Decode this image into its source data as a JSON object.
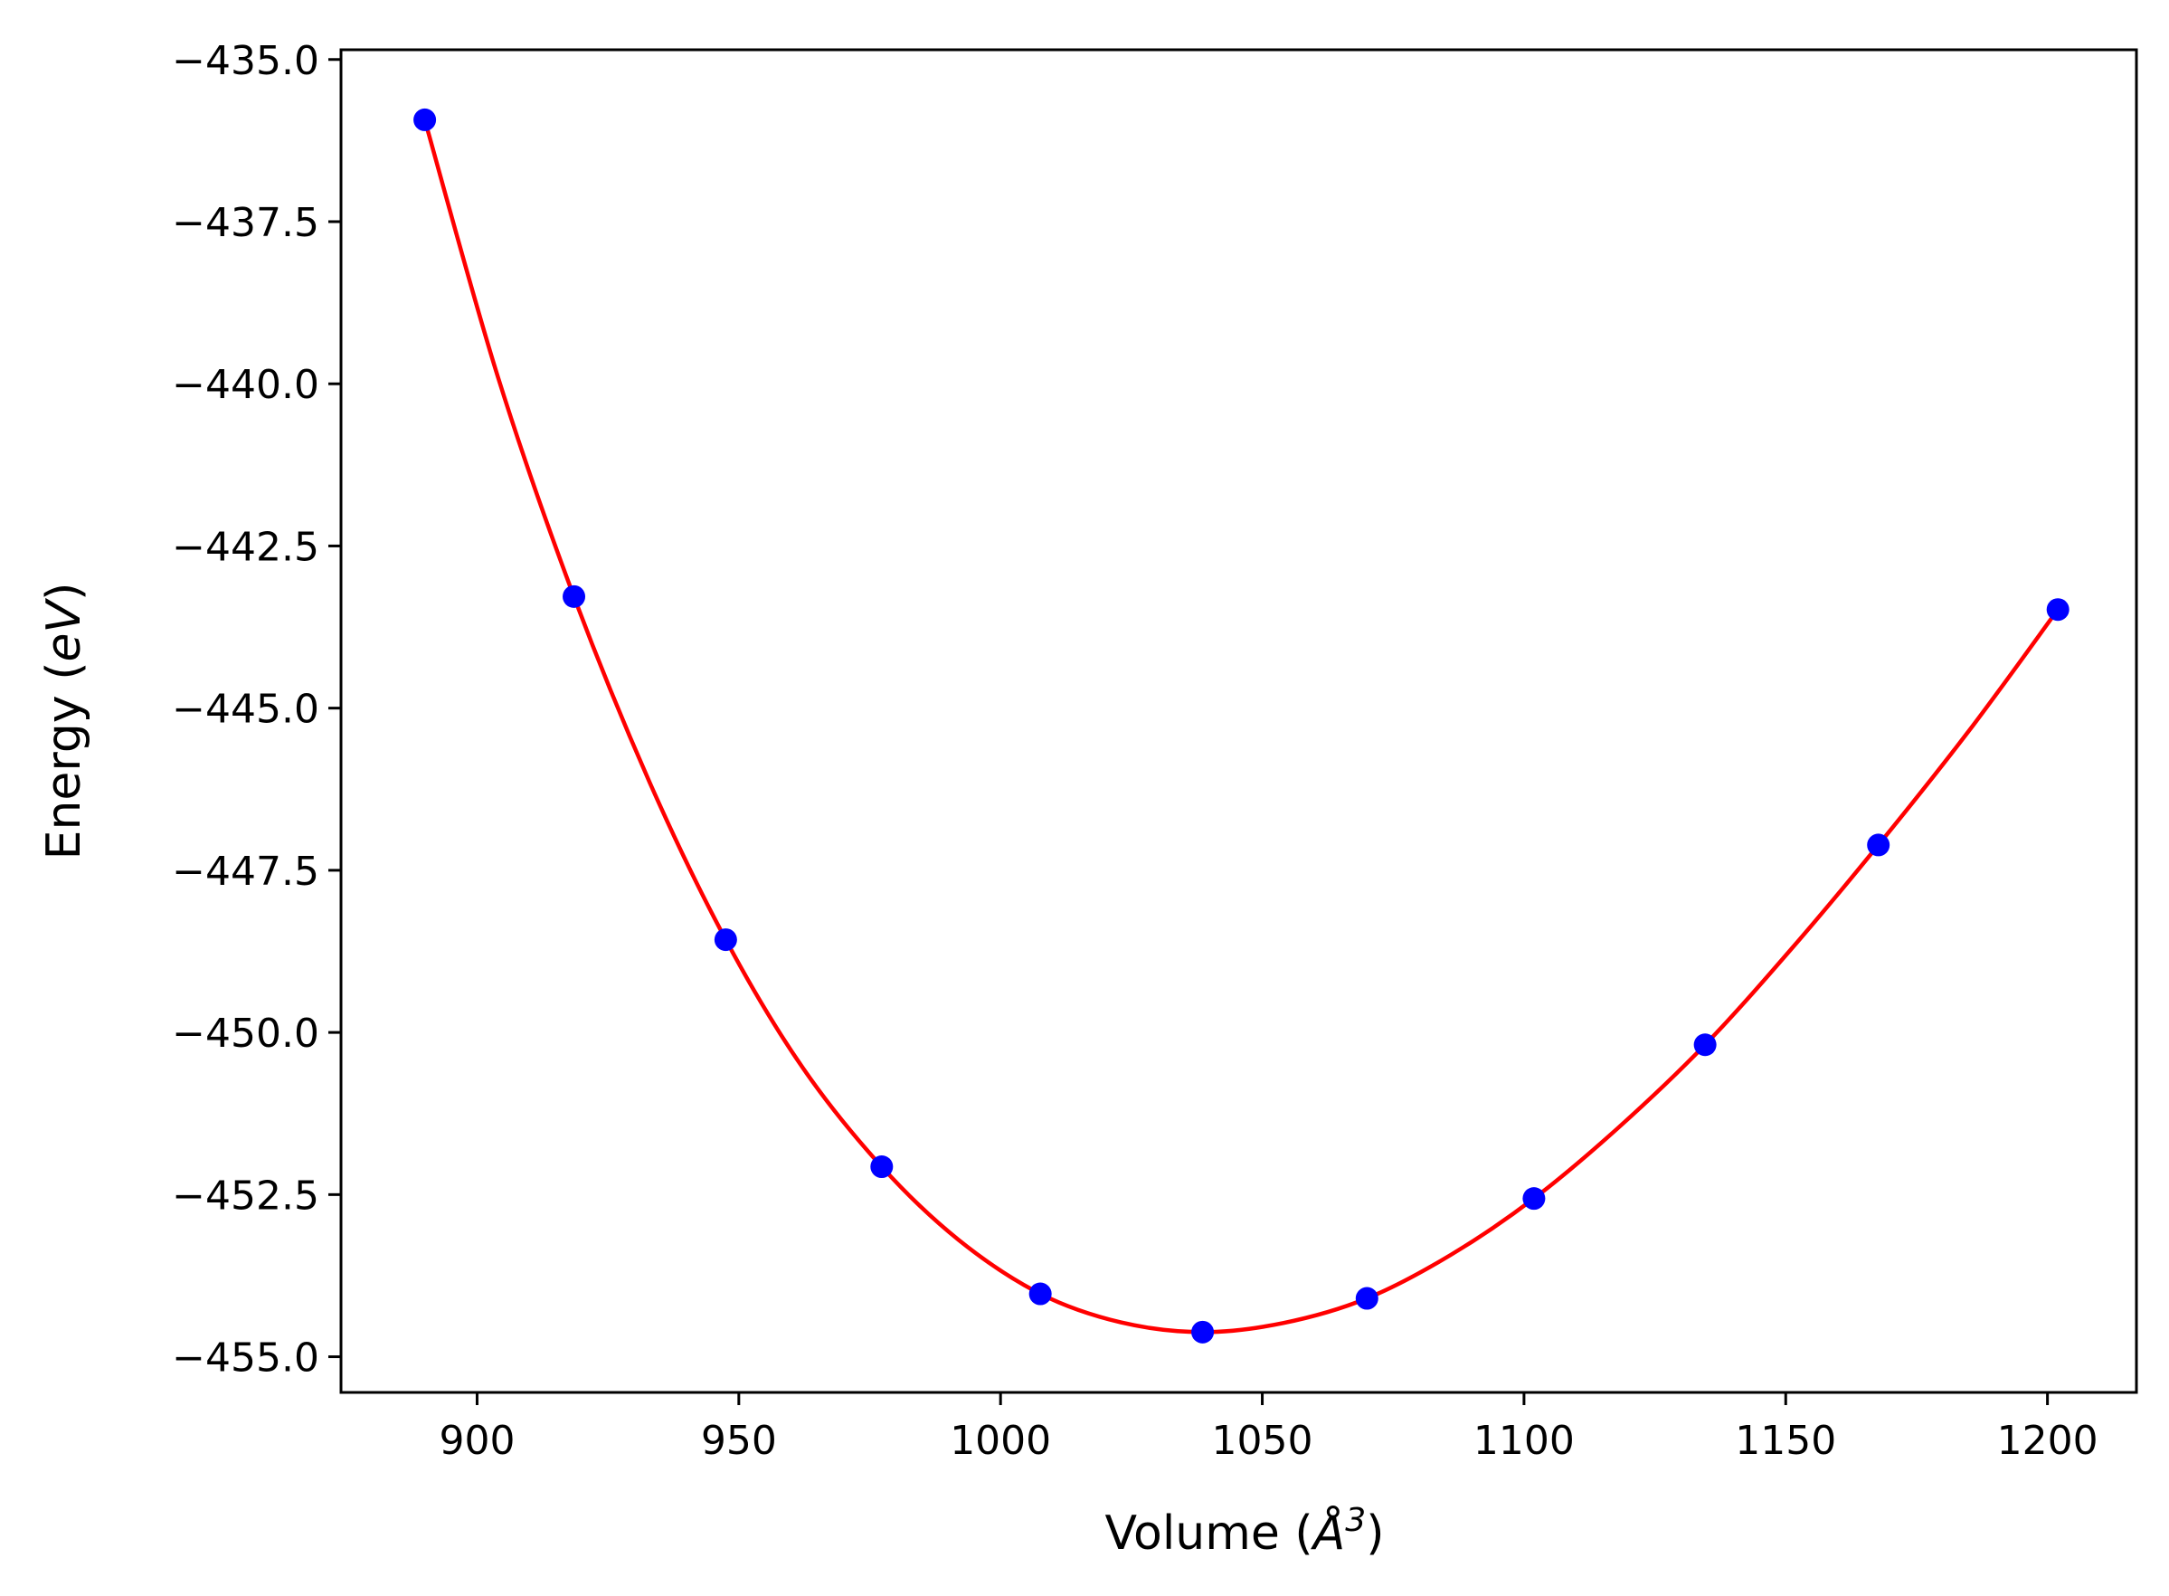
{
  "chart_data": {
    "type": "scatter",
    "xlabel": "Volume (Å³)",
    "ylabel": "Energy (eV)",
    "xlabel_parts": {
      "prefix": "Volume (",
      "symbol": "Å",
      "exponent": "3",
      "suffix": ")"
    },
    "ylabel_parts": {
      "prefix": "Energy (",
      "unit": "eV",
      "suffix": ")"
    },
    "xlim": [
      874,
      1217
    ],
    "ylim": [
      -455.55,
      -434.85
    ],
    "x_ticks": [
      900,
      950,
      1000,
      1050,
      1100,
      1150,
      1200
    ],
    "x_tick_labels": [
      "900",
      "950",
      "1000",
      "1050",
      "1100",
      "1150",
      "1200"
    ],
    "y_ticks": [
      -435.0,
      -437.5,
      -440.0,
      -442.5,
      -445.0,
      -447.5,
      -450.0,
      -452.5,
      -455.0
    ],
    "y_tick_labels": [
      "−435.0",
      "−437.5",
      "−440.0",
      "−442.5",
      "−445.0",
      "−447.5",
      "−450.0",
      "−452.5",
      "−455.0"
    ],
    "grid": false,
    "series": [
      {
        "kind": "points",
        "color": "#0000ff",
        "points": [
          {
            "x": 890.0,
            "y": -435.93
          },
          {
            "x": 918.5,
            "y": -443.28
          },
          {
            "x": 947.5,
            "y": -448.57
          },
          {
            "x": 977.3,
            "y": -452.07
          },
          {
            "x": 1007.6,
            "y": -454.03
          },
          {
            "x": 1038.6,
            "y": -454.62
          },
          {
            "x": 1070.0,
            "y": -454.1
          },
          {
            "x": 1101.9,
            "y": -452.56
          },
          {
            "x": 1134.6,
            "y": -450.19
          },
          {
            "x": 1167.7,
            "y": -447.11
          },
          {
            "x": 1202.0,
            "y": -443.48
          }
        ]
      },
      {
        "kind": "fit-curve",
        "color": "#ff0000",
        "points": [
          {
            "x": 890.0,
            "y": -435.93
          },
          {
            "x": 904.0,
            "y": -439.9
          },
          {
            "x": 918.5,
            "y": -443.28
          },
          {
            "x": 933.0,
            "y": -446.15
          },
          {
            "x": 947.5,
            "y": -448.57
          },
          {
            "x": 962.0,
            "y": -450.52
          },
          {
            "x": 977.3,
            "y": -452.07
          },
          {
            "x": 992.0,
            "y": -453.2
          },
          {
            "x": 1007.6,
            "y": -454.03
          },
          {
            "x": 1023.0,
            "y": -454.47
          },
          {
            "x": 1038.6,
            "y": -454.62
          },
          {
            "x": 1054.0,
            "y": -454.48
          },
          {
            "x": 1070.0,
            "y": -454.1
          },
          {
            "x": 1086.0,
            "y": -453.43
          },
          {
            "x": 1101.9,
            "y": -452.56
          },
          {
            "x": 1118.0,
            "y": -451.47
          },
          {
            "x": 1134.6,
            "y": -450.19
          },
          {
            "x": 1151.0,
            "y": -448.72
          },
          {
            "x": 1167.7,
            "y": -447.11
          },
          {
            "x": 1185.0,
            "y": -445.35
          },
          {
            "x": 1202.0,
            "y": -443.48
          }
        ]
      }
    ]
  }
}
